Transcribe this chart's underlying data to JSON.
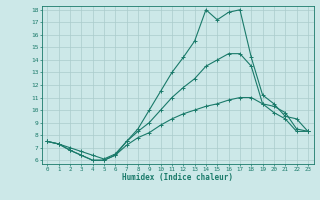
{
  "xlabel": "Humidex (Indice chaleur)",
  "bg_color": "#cce8e8",
  "grid_color": "#aacccc",
  "line_color": "#1a7a6a",
  "xlim": [
    -0.5,
    23.5
  ],
  "ylim": [
    5.7,
    18.3
  ],
  "yticks": [
    6,
    7,
    8,
    9,
    10,
    11,
    12,
    13,
    14,
    15,
    16,
    17,
    18
  ],
  "xticks": [
    0,
    1,
    2,
    3,
    4,
    5,
    6,
    7,
    8,
    9,
    10,
    11,
    12,
    13,
    14,
    15,
    16,
    17,
    18,
    19,
    20,
    21,
    22,
    23
  ],
  "line1_x": [
    0,
    1,
    2,
    3,
    4,
    5,
    6,
    7,
    8,
    9,
    10,
    11,
    12,
    13,
    14,
    15,
    16,
    17,
    18,
    19,
    20,
    21,
    22,
    23
  ],
  "line1_y": [
    7.5,
    7.3,
    7.0,
    6.7,
    6.4,
    6.1,
    6.5,
    7.5,
    8.3,
    9.0,
    10.0,
    11.0,
    11.8,
    12.5,
    13.5,
    14.0,
    14.5,
    14.5,
    13.5,
    10.5,
    10.3,
    9.8,
    8.5,
    8.3
  ],
  "line2_x": [
    0,
    1,
    2,
    3,
    4,
    5,
    6,
    7,
    8,
    9,
    10,
    11,
    12,
    13,
    14,
    15,
    16,
    17,
    18,
    19,
    20,
    21,
    22,
    23
  ],
  "line2_y": [
    7.5,
    7.3,
    6.8,
    6.4,
    6.0,
    6.0,
    6.4,
    7.5,
    8.5,
    10.0,
    11.5,
    13.0,
    14.2,
    15.5,
    18.0,
    17.2,
    17.8,
    18.0,
    14.2,
    11.2,
    10.5,
    9.5,
    9.3,
    8.3
  ],
  "line3_x": [
    0,
    1,
    2,
    3,
    4,
    5,
    6,
    7,
    8,
    9,
    10,
    11,
    12,
    13,
    14,
    15,
    16,
    17,
    18,
    19,
    20,
    21,
    22,
    23
  ],
  "line3_y": [
    7.5,
    7.3,
    6.8,
    6.4,
    6.0,
    6.0,
    6.4,
    7.2,
    7.8,
    8.2,
    8.8,
    9.3,
    9.7,
    10.0,
    10.3,
    10.5,
    10.8,
    11.0,
    11.0,
    10.5,
    9.8,
    9.3,
    8.3,
    8.3
  ]
}
